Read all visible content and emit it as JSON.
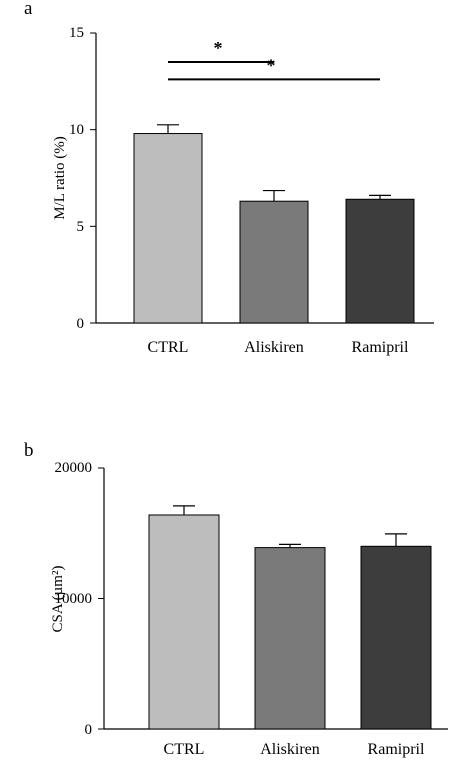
{
  "chart_data": [
    {
      "type": "bar",
      "panel_label": "a",
      "ylabel": "M/L ratio (%)",
      "ylim": [
        0,
        15
      ],
      "yticks": [
        "0",
        "5",
        "10",
        "15"
      ],
      "categories": [
        "CTRL",
        "Aliskiren",
        "Ramipril"
      ],
      "values": [
        9.8,
        6.3,
        6.4
      ],
      "errors": [
        0.45,
        0.55,
        0.2
      ],
      "colors": [
        "#bdbdbd",
        "#7a7a7a",
        "#3d3d3d"
      ],
      "significance": [
        {
          "from": 0,
          "to": 1,
          "label": "*",
          "y": 13.5
        },
        {
          "from": 0,
          "to": 2,
          "label": "*",
          "y": 12.6
        }
      ]
    },
    {
      "type": "bar",
      "panel_label": "b",
      "ylabel": "CSA (µm²)",
      "ylim": [
        0,
        20000
      ],
      "yticks": [
        "0",
        "10000",
        "20000"
      ],
      "categories": [
        "CTRL",
        "Aliskiren",
        "Ramipril"
      ],
      "values": [
        16400,
        13900,
        14000
      ],
      "errors": [
        700,
        250,
        950
      ],
      "colors": [
        "#bdbdbd",
        "#7a7a7a",
        "#3d3d3d"
      ]
    }
  ]
}
